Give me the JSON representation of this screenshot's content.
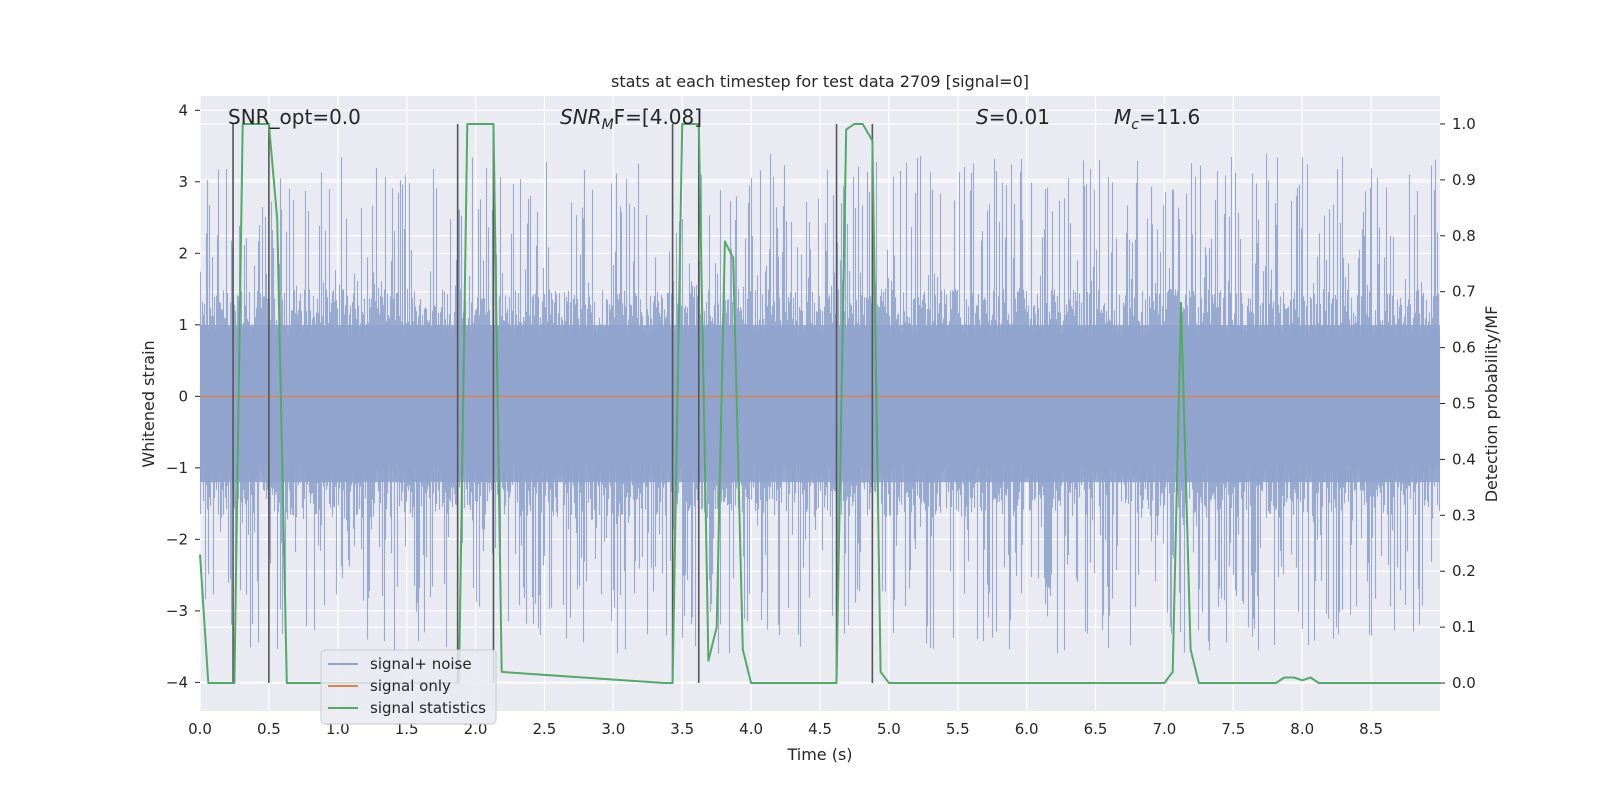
{
  "chart_data": {
    "type": "line",
    "title": "stats at each timestep for test data 2709 [signal=0]",
    "xlabel": "Time (s)",
    "ylabel": "Whitened strain",
    "y2label": "Detection probability/MF",
    "xlim": [
      0.0,
      9.0
    ],
    "ylim": [
      -4.4,
      4.2
    ],
    "y2lim": [
      -0.05,
      1.05
    ],
    "grid": true,
    "x_ticks": [
      "0.0",
      "0.5",
      "1.0",
      "1.5",
      "2.0",
      "2.5",
      "3.0",
      "3.5",
      "4.0",
      "4.5",
      "5.0",
      "5.5",
      "6.0",
      "6.5",
      "7.0",
      "7.5",
      "8.0",
      "8.5"
    ],
    "y_ticks": [
      "4",
      "3",
      "2",
      "1",
      "0",
      "−1",
      "−2",
      "−3",
      "−4"
    ],
    "y2_ticks": [
      "1.0",
      "0.9",
      "0.8",
      "0.7",
      "0.6",
      "0.5",
      "0.4",
      "0.3",
      "0.2",
      "0.1",
      "0.0"
    ],
    "annotations": {
      "snr_opt": "SNR_opt=0.0",
      "snr_mf_italic": "SNR",
      "snr_mf_sub": "M",
      "snr_mf_rest": "F=[4.08]",
      "s_italic": "S",
      "s_rest": "=0.01",
      "mc_italic": "M",
      "mc_sub": "c",
      "mc_rest": "=11.6"
    },
    "legend": {
      "position": "lower-left",
      "entries": [
        "signal+ noise",
        "signal only",
        "signal statistics"
      ]
    },
    "colors": {
      "noise": "#8fa3cc",
      "signal": "#dd8452",
      "stats": "#55a868",
      "vlines": "#555555"
    },
    "vertical_lines_s": [
      0.24,
      0.5,
      1.87,
      2.13,
      3.43,
      3.62,
      4.62,
      4.88
    ],
    "series": [
      {
        "name": "signal+ noise",
        "axis": "left",
        "envelope": {
          "typical_hi": 1.5,
          "typical_lo": -1.7,
          "peak_hi": 3.4,
          "peak_lo": -3.6
        }
      },
      {
        "name": "signal only",
        "axis": "left",
        "x": [
          0.0,
          9.0
        ],
        "values": [
          0.0,
          0.0
        ]
      },
      {
        "name": "signal statistics",
        "axis": "right",
        "x": [
          0.0,
          0.06,
          0.25,
          0.31,
          0.5,
          0.56,
          0.63,
          1.88,
          1.94,
          2.13,
          2.19,
          3.37,
          3.43,
          3.5,
          3.62,
          3.69,
          3.75,
          3.81,
          3.87,
          3.94,
          4.0,
          4.56,
          4.62,
          4.69,
          4.75,
          4.81,
          4.88,
          4.94,
          5.0,
          5.94,
          6.0,
          6.95,
          7.0,
          7.06,
          7.12,
          7.19,
          7.25,
          7.81,
          7.87,
          7.94,
          8.0,
          8.06,
          8.12,
          8.19,
          8.25,
          9.0
        ],
        "values": [
          0.23,
          0.0,
          0.0,
          1.0,
          1.0,
          0.83,
          0.0,
          0.0,
          1.0,
          1.0,
          0.02,
          0.0,
          0.0,
          1.0,
          1.0,
          0.04,
          0.1,
          0.79,
          0.76,
          0.06,
          0.0,
          0.0,
          0.0,
          0.99,
          1.0,
          1.0,
          0.97,
          0.02,
          0.0,
          0.0,
          0.0,
          0.0,
          0.0,
          0.02,
          0.68,
          0.06,
          0.0,
          0.0,
          0.01,
          0.01,
          0.005,
          0.01,
          0.0,
          0.0,
          0.0,
          0.0
        ]
      }
    ]
  }
}
